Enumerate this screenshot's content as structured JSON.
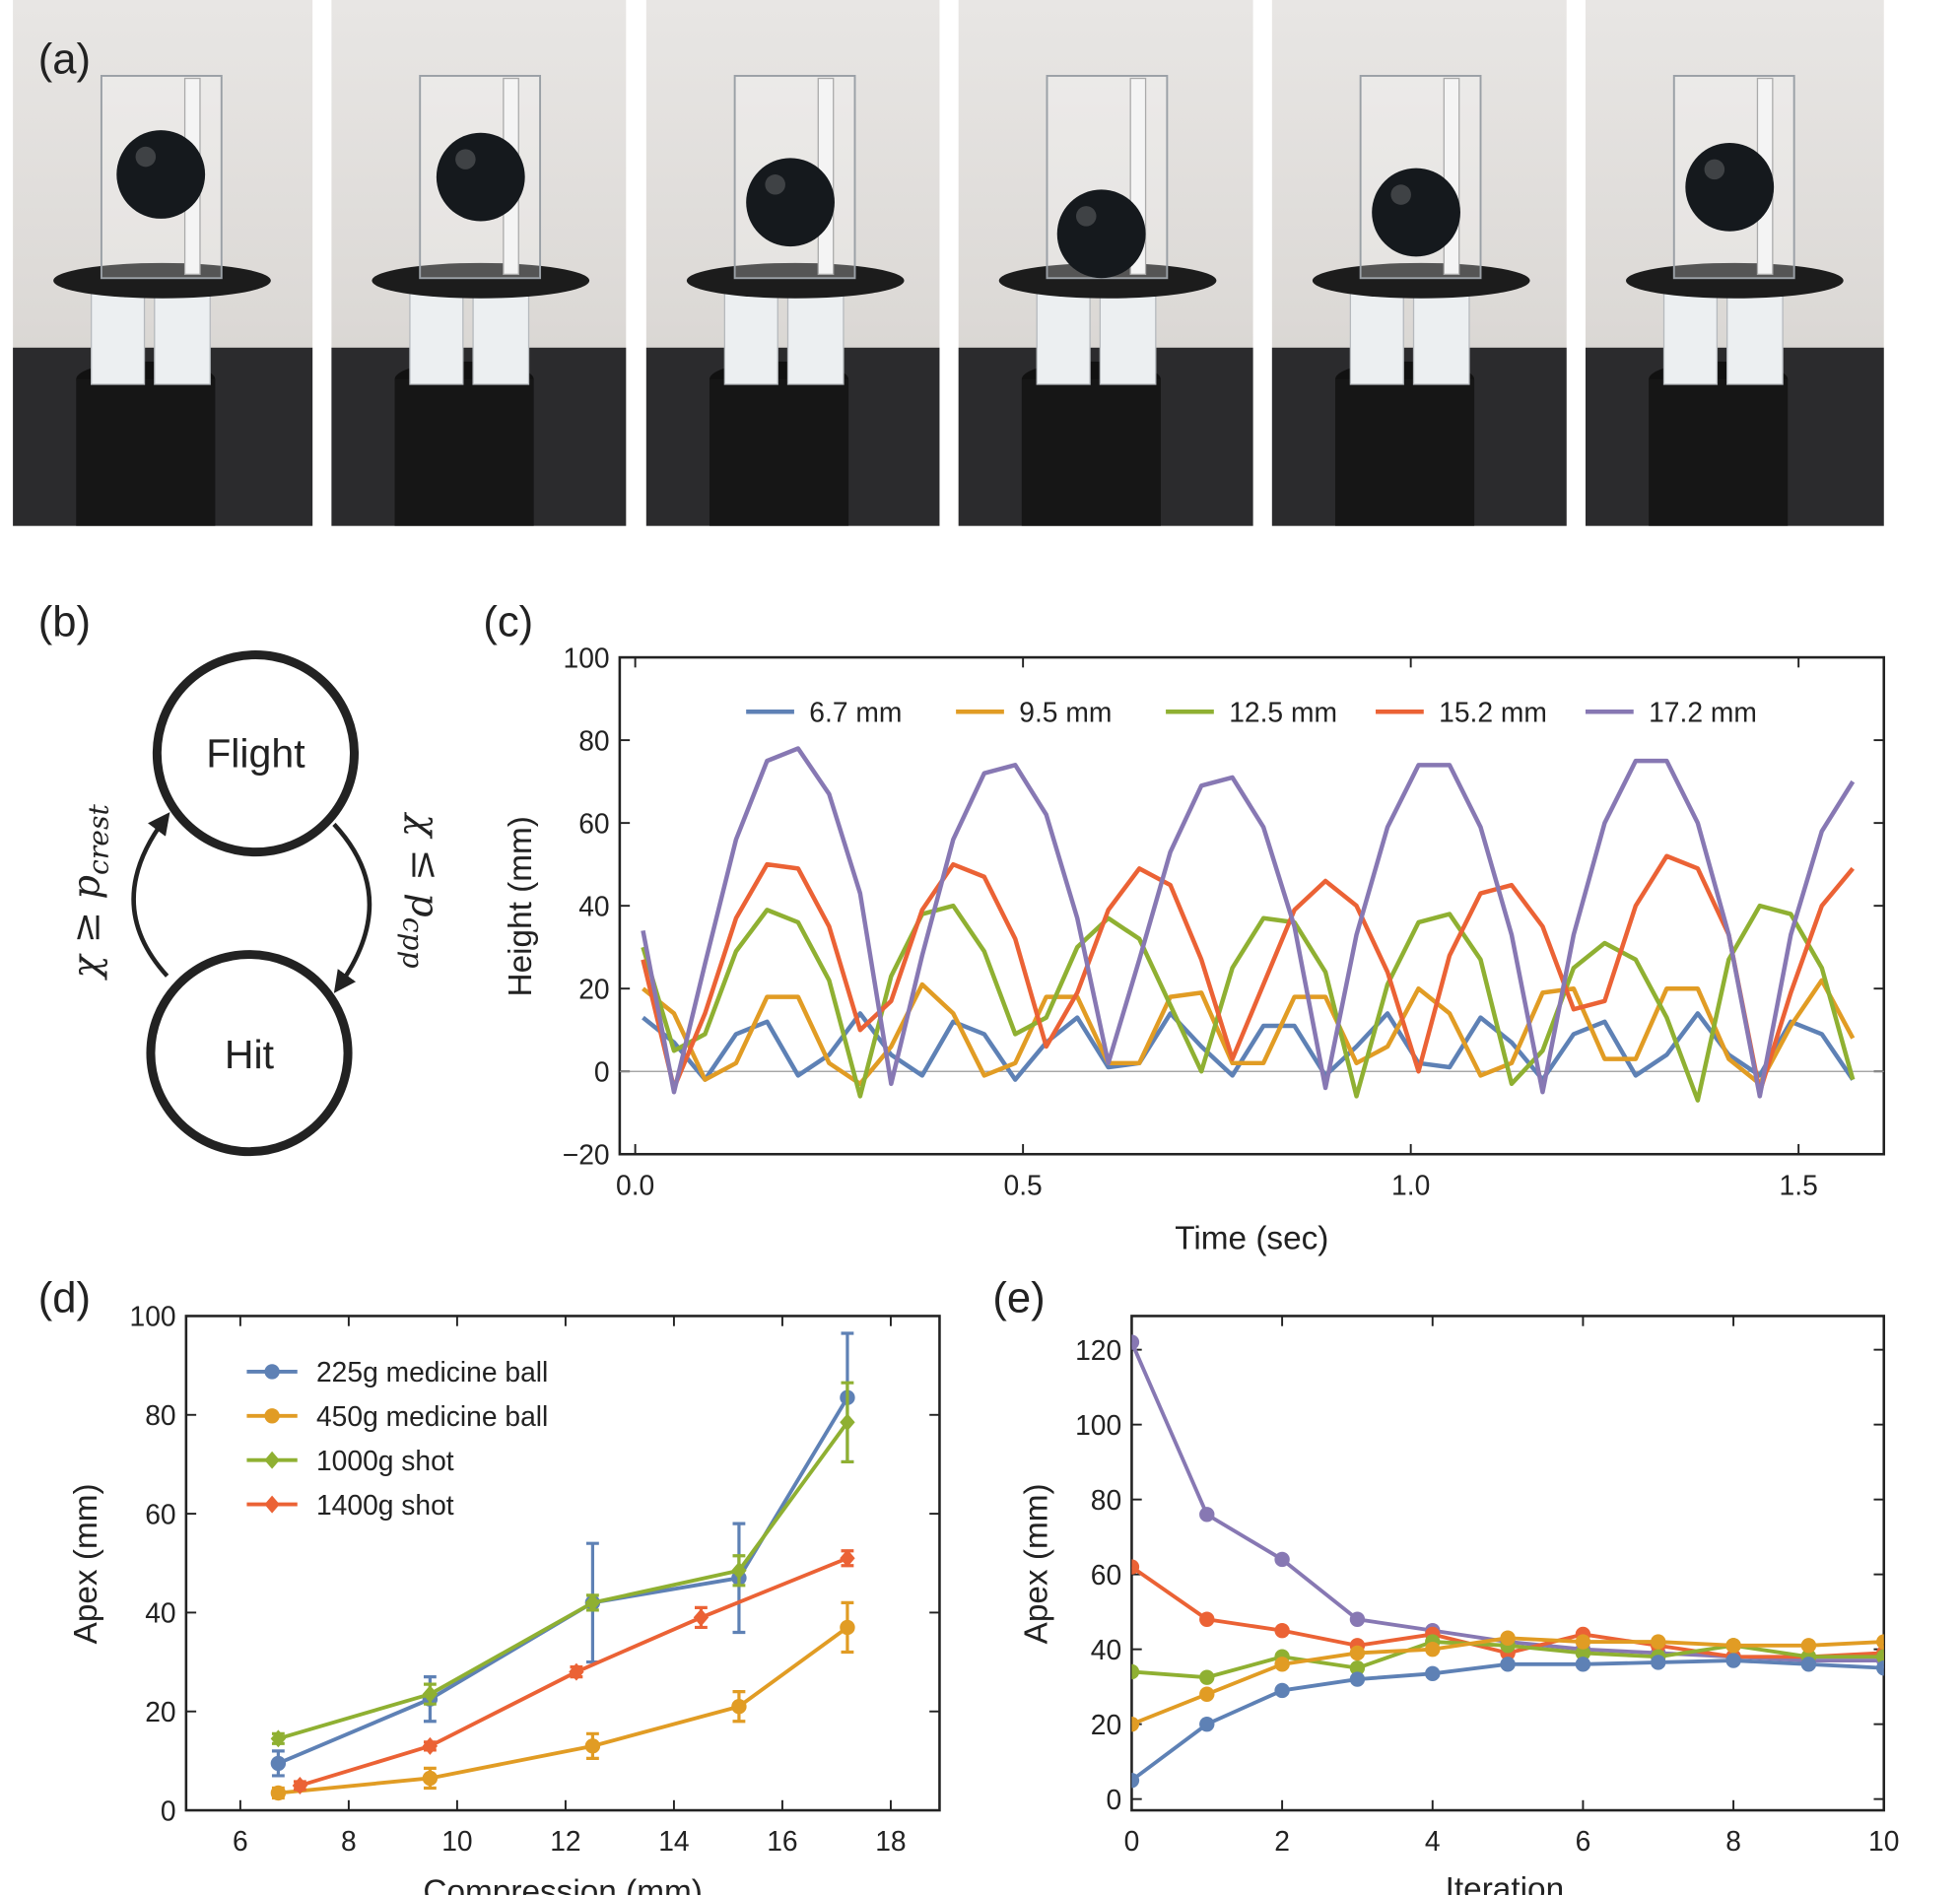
{
  "panel_labels": [
    "(a)",
    "(b)",
    "(c)",
    "(d)",
    "(e)"
  ],
  "diagram": {
    "nodes": [
      "Flight",
      "Hit"
    ],
    "edges": [
      {
        "label": "χ ≥ p",
        "subscript": "crest"
      },
      {
        "label": "χ ≤ p",
        "subscript": "cpp"
      }
    ]
  },
  "chart_data": [
    {
      "type": "line",
      "x_label": "Time (sec)",
      "y_label": "Height (mm)",
      "x": [
        0.01,
        0.05,
        0.09,
        0.13,
        0.17,
        0.21,
        0.25,
        0.29,
        0.33,
        0.37,
        0.41,
        0.45,
        0.49,
        0.53,
        0.57,
        0.61,
        0.65,
        0.69,
        0.73,
        0.77,
        0.81,
        0.85,
        0.89,
        0.93,
        0.97,
        1.01,
        1.05,
        1.09,
        1.13,
        1.17,
        1.21,
        1.25,
        1.29,
        1.33,
        1.37,
        1.41,
        1.45,
        1.49,
        1.53,
        1.57
      ],
      "series": [
        {
          "name": "6.7 mm",
          "color": "#5e81b5",
          "values": [
            13,
            7,
            -2,
            9,
            12,
            -1,
            4,
            14,
            4,
            -1,
            12,
            9,
            -2,
            7,
            13,
            1,
            2,
            14,
            6,
            -1,
            11,
            11,
            -1,
            6,
            14,
            2,
            1,
            13,
            7,
            -2,
            9,
            12,
            -1,
            4,
            14,
            4,
            -1,
            12,
            9,
            -2
          ]
        },
        {
          "name": "9.5 mm",
          "color": "#e19c24",
          "values": [
            20,
            14,
            -2,
            2,
            18,
            18,
            2,
            -3,
            6,
            21,
            14,
            -1,
            2,
            18,
            18,
            2,
            2,
            18,
            19,
            2,
            2,
            18,
            18,
            2,
            6,
            20,
            14,
            -1,
            2,
            19,
            20,
            3,
            3,
            20,
            20,
            3,
            -3,
            11,
            22,
            8
          ]
        },
        {
          "name": "12.5 mm",
          "color": "#8fb032",
          "values": [
            30,
            5,
            9,
            29,
            39,
            36,
            22,
            -6,
            23,
            38,
            40,
            29,
            9,
            13,
            30,
            37,
            32,
            16,
            0,
            25,
            37,
            36,
            24,
            -6,
            21,
            36,
            38,
            27,
            -3,
            5,
            25,
            31,
            27,
            13,
            -7,
            27,
            40,
            38,
            25,
            -2
          ]
        },
        {
          "name": "15.2 mm",
          "color": "#eb6235",
          "values": [
            27,
            -4,
            14,
            37,
            50,
            49,
            35,
            10,
            17,
            39,
            50,
            47,
            32,
            6,
            19,
            39,
            49,
            45,
            27,
            3,
            21,
            39,
            46,
            40,
            24,
            0,
            28,
            43,
            45,
            35,
            15,
            17,
            40,
            52,
            49,
            33,
            -5,
            19,
            40,
            49
          ]
        },
        {
          "name": "17.2 mm",
          "color": "#8778b3",
          "values": [
            34,
            -5,
            26,
            56,
            75,
            78,
            67,
            43,
            -3,
            28,
            56,
            72,
            74,
            62,
            37,
            2,
            27,
            53,
            69,
            71,
            59,
            35,
            -4,
            33,
            59,
            74,
            74,
            59,
            33,
            -5,
            33,
            60,
            75,
            75,
            60,
            33,
            -6,
            33,
            58,
            70
          ]
        }
      ],
      "xlim": [
        -0.02,
        1.61
      ],
      "xticks": [
        {
          "value": 0,
          "label": "0.0"
        },
        0.5,
        {
          "value": 1,
          "label": "1.0"
        },
        1.5
      ],
      "ylim": [
        -20,
        100
      ],
      "yticks": [
        {
          "value": -20,
          "label": "−20"
        },
        0,
        20,
        40,
        60,
        80,
        100
      ],
      "zero_line": true,
      "legend": "top"
    },
    {
      "type": "line",
      "x_label": "Compression (mm)",
      "y_label": "Apex (mm)",
      "markers": true,
      "series": [
        {
          "name": "225g medicine ball",
          "color": "#5e81b5",
          "marker": "circle",
          "x": [
            6.7,
            9.5,
            12.5,
            15.2,
            17.2
          ],
          "values": [
            9.5,
            22.5,
            42,
            47,
            83.5
          ],
          "errors": [
            2.5,
            4.5,
            12,
            11,
            13
          ]
        },
        {
          "name": "450g medicine ball",
          "color": "#e19c24",
          "marker": "circle",
          "x": [
            6.7,
            9.5,
            12.5,
            15.2,
            17.2
          ],
          "values": [
            3.5,
            6.5,
            13,
            21,
            37
          ],
          "errors": [
            1,
            2,
            2.5,
            3,
            5
          ]
        },
        {
          "name": "1000g shot",
          "color": "#8fb032",
          "marker": "diamond",
          "x": [
            6.7,
            9.5,
            12.5,
            15.2,
            17.2
          ],
          "values": [
            14.5,
            23.5,
            42,
            48.5,
            78.5
          ],
          "errors": [
            1,
            2,
            1.5,
            3,
            8
          ]
        },
        {
          "name": "1400g shot",
          "color": "#eb6235",
          "marker": "diamond",
          "x": [
            7.1,
            9.5,
            12.2,
            14.5,
            17.2
          ],
          "values": [
            5,
            13,
            28,
            39,
            51
          ],
          "errors": [
            0.8,
            0.8,
            1,
            2,
            1.5
          ]
        }
      ],
      "xlim": [
        5,
        18.9
      ],
      "xticks": [
        6,
        8,
        10,
        12,
        14,
        16,
        18
      ],
      "ylim": [
        0,
        100
      ],
      "yticks": [
        0,
        20,
        40,
        60,
        80,
        100
      ],
      "legend": "top-left"
    },
    {
      "type": "line",
      "x_label": "Iteration",
      "y_label": "Apex (mm)",
      "markers": true,
      "x": [
        0,
        1,
        2,
        3,
        4,
        5,
        6,
        7,
        8,
        9,
        10
      ],
      "series": [
        {
          "color": "#8778b3",
          "marker": "circle",
          "values": [
            122,
            76,
            64,
            48,
            45,
            42,
            40,
            39,
            38,
            37,
            37
          ]
        },
        {
          "color": "#eb6235",
          "marker": "circle",
          "values": [
            62,
            48,
            45,
            41,
            44,
            39,
            44,
            41,
            38,
            38,
            39
          ]
        },
        {
          "color": "#8fb032",
          "marker": "circle",
          "values": [
            34,
            32.5,
            38,
            35,
            42,
            41,
            39,
            38,
            41,
            38,
            38
          ]
        },
        {
          "color": "#e19c24",
          "marker": "circle",
          "values": [
            20,
            28,
            36,
            39,
            40,
            43,
            42,
            42,
            41,
            41,
            42
          ]
        },
        {
          "color": "#5e81b5",
          "marker": "circle",
          "values": [
            5,
            20,
            29,
            32,
            33.5,
            36,
            36,
            36.5,
            37,
            36,
            35
          ]
        }
      ],
      "xlim": [
        0,
        10
      ],
      "xticks": [
        0,
        2,
        4,
        6,
        8,
        10
      ],
      "ylim": [
        -3,
        129
      ],
      "yticks": [
        0,
        20,
        40,
        60,
        80,
        100,
        120
      ]
    }
  ]
}
